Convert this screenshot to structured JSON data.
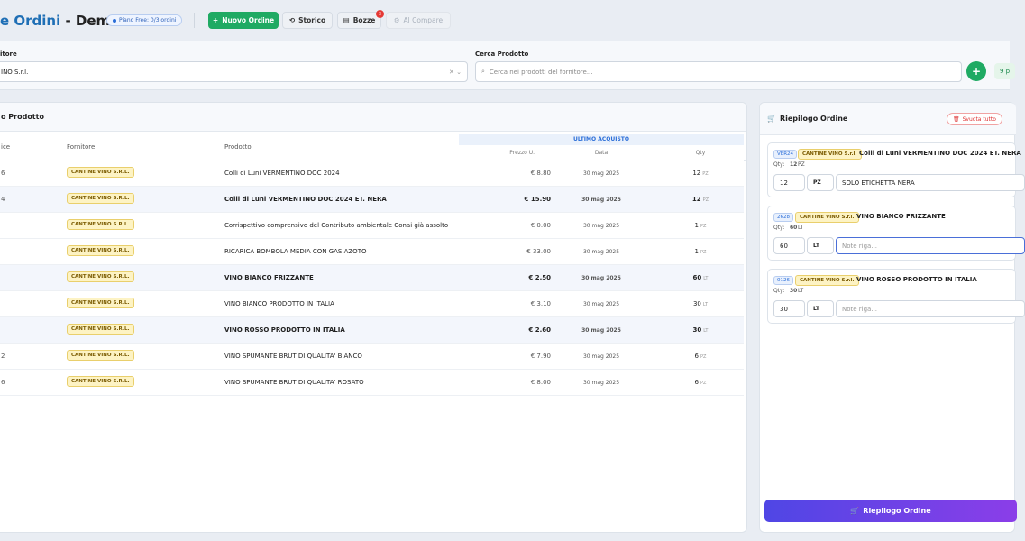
{
  "header": {
    "title_part": "e Ordini",
    "title_suffix": " - Demo",
    "plan_badge": "Piano Free: 0/3 ordini",
    "buttons": {
      "new_order": "Nuovo Ordine",
      "history": "Storico",
      "drafts": "Bozze",
      "drafts_count": 3,
      "compare": "Al Compare"
    }
  },
  "filters": {
    "supplier_label": "itore",
    "supplier_value": "INO S.r.l.",
    "search_label": "Cerca Prodotto",
    "search_placeholder": "Cerca nei prodotti del fornitore...",
    "add_button": "+",
    "count_badge": "9 p"
  },
  "table": {
    "title": "o Prodotto",
    "columns": [
      "ice",
      "Fornitore",
      "Prodotto"
    ],
    "group_header": "ULTIMO ACQUISTO",
    "group_columns": [
      "Prezzo U.",
      "Data",
      "Qty"
    ],
    "rows": [
      {
        "code": "6",
        "supplier": "CANTINE VINO S.R.L.",
        "product": "Colli di Luni VERMENTINO DOC 2024",
        "price": "€ 8.80",
        "date": "30 mag 2025",
        "qty": 12,
        "unit": "PZ",
        "selected": false
      },
      {
        "code": "4",
        "supplier": "CANTINE VINO S.R.L.",
        "product": "Colli di Luni VERMENTINO DOC 2024 ET. NERA",
        "price": "€ 15.90",
        "date": "30 mag 2025",
        "qty": 12,
        "unit": "PZ",
        "selected": true
      },
      {
        "code": null,
        "supplier": "CANTINE VINO S.R.L.",
        "product": "Corrispettivo comprensivo del Contributo ambientale Conai già assolto",
        "price": "€ 0.00",
        "date": "30 mag 2025",
        "qty": 1,
        "unit": "PZ",
        "selected": false
      },
      {
        "code": null,
        "supplier": "CANTINE VINO S.R.L.",
        "product": "RICARICA BOMBOLA MEDIA CON GAS AZOTO",
        "price": "€ 33.00",
        "date": "30 mag 2025",
        "qty": 1,
        "unit": "PZ",
        "selected": false
      },
      {
        "code": null,
        "supplier": "CANTINE VINO S.R.L.",
        "product": "VINO BIANCO FRIZZANTE",
        "price": "€ 2.50",
        "date": "30 mag 2025",
        "qty": 60,
        "unit": "LT",
        "selected": true
      },
      {
        "code": null,
        "supplier": "CANTINE VINO S.R.L.",
        "product": "VINO BIANCO PRODOTTO IN ITALIA",
        "price": "€ 3.10",
        "date": "30 mag 2025",
        "qty": 30,
        "unit": "LT",
        "selected": false
      },
      {
        "code": null,
        "supplier": "CANTINE VINO S.R.L.",
        "product": "VINO ROSSO PRODOTTO IN ITALIA",
        "price": "€ 2.60",
        "date": "30 mag 2025",
        "qty": 30,
        "unit": "LT",
        "selected": true
      },
      {
        "code": "2",
        "supplier": "CANTINE VINO S.R.L.",
        "product": "VINO SPUMANTE BRUT DI QUALITA' BIANCO",
        "price": "€ 7.90",
        "date": "30 mag 2025",
        "qty": 6,
        "unit": "PZ",
        "selected": false
      },
      {
        "code": "6",
        "supplier": "CANTINE VINO S.R.L.",
        "product": "VINO SPUMANTE BRUT DI QUALITA' ROSATO",
        "price": "€ 8.00",
        "date": "30 mag 2025",
        "qty": 6,
        "unit": "PZ",
        "selected": false
      }
    ]
  },
  "order": {
    "title": "Riepilogo Ordine",
    "clear_button": "Svuota tutto",
    "qty_label": "Qty:",
    "note_placeholder": "Note riga...",
    "items": [
      {
        "code": "VER24",
        "supplier": "CANTINE VINO S.r.l.",
        "name": "Colli di Luni VERMENTINO DOC 2024 ET. NERA",
        "qty": 12,
        "unit": "PZ",
        "note": "SOLO ETICHETTA NERA"
      },
      {
        "code": "2628",
        "supplier": "CANTINE VINO S.r.l.",
        "name": "VINO BIANCO FRIZZANTE",
        "qty": 60,
        "unit": "LT",
        "note": null
      },
      {
        "code": "0126",
        "supplier": "CANTINE VINO S.r.l.",
        "name": "VINO ROSSO PRODOTTO IN ITALIA",
        "qty": 30,
        "unit": "LT",
        "note": null
      }
    ],
    "submit_button": "Riepilogo Ordine"
  }
}
